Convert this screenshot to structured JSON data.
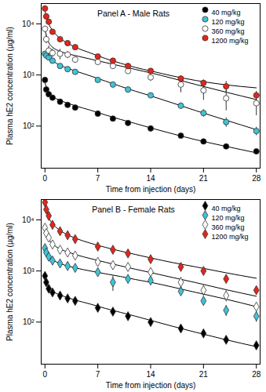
{
  "chart_data": [
    {
      "type": "scatter",
      "title": "Panel A - Male Rats",
      "x_label": "Time from injection (days)",
      "y_label": "Plasma hE2 concentration (µg/ml)",
      "log": "y",
      "legend": "top-right",
      "xlim": [
        -0.5,
        28.5
      ],
      "xticks": [
        0,
        7,
        14,
        21,
        28
      ],
      "ylim": [
        15,
        25000
      ],
      "yticks": [
        {
          "value": 100,
          "label": "10²"
        },
        {
          "value": 1000,
          "label": "10³"
        },
        {
          "value": 10000,
          "label": "10⁴"
        }
      ],
      "x": [
        0,
        0.17,
        0.5,
        1,
        2,
        3,
        4,
        7,
        9,
        11,
        14,
        18,
        21,
        24,
        28
      ],
      "fit_x": [
        0,
        0.5,
        1,
        2,
        3,
        4,
        6,
        8,
        10,
        12,
        14,
        17,
        20,
        24,
        28
      ],
      "series": [
        {
          "name": "40 mg/kg",
          "color": "#000000",
          "marker": "circle",
          "values": [
            800,
            520,
            420,
            360,
            300,
            260,
            230,
            175,
            140,
            115,
            90,
            65,
            50,
            40,
            32
          ],
          "errors": [
            60,
            30,
            25,
            20,
            15,
            12,
            10,
            10,
            8,
            7,
            6,
            5,
            5,
            4,
            3
          ],
          "fit": [
            700,
            460,
            380,
            320,
            280,
            250,
            205,
            165,
            135,
            112,
            92,
            70,
            54,
            40,
            30
          ]
        },
        {
          "name": "120 mg/kg",
          "color": "#3fc3d6",
          "marker": "circle",
          "values": [
            2600,
            2400,
            2200,
            1900,
            1500,
            1300,
            1150,
            800,
            650,
            520,
            400,
            250,
            180,
            120,
            80
          ],
          "errors": [
            300,
            250,
            200,
            150,
            120,
            100,
            80,
            60,
            50,
            40,
            40,
            35,
            30,
            25,
            15
          ],
          "fit": [
            2700,
            2200,
            1900,
            1550,
            1350,
            1200,
            960,
            760,
            600,
            480,
            390,
            280,
            200,
            130,
            85
          ]
        },
        {
          "name": "360 mg/kg",
          "color": "#ffffff",
          "marker": "circle",
          "values": [
            8000,
            5000,
            3000,
            2700,
            2600,
            2500,
            2000,
            1800,
            1500,
            1200,
            900,
            650,
            500,
            350,
            280
          ],
          "errors": [
            800,
            900,
            700,
            500,
            600,
            400,
            300,
            250,
            200,
            150,
            150,
            200,
            180,
            150,
            120
          ],
          "fit": [
            7500,
            4300,
            3500,
            2900,
            2600,
            2400,
            2050,
            1750,
            1500,
            1280,
            1100,
            850,
            650,
            460,
            330
          ]
        },
        {
          "name": "1200 mg/kg",
          "color": "#e4251b",
          "marker": "circle",
          "values": [
            20000,
            14000,
            11000,
            7000,
            5000,
            4200,
            3500,
            2300,
            1900,
            1500,
            1200,
            850,
            700,
            600,
            400
          ],
          "errors": [
            2500,
            1500,
            1000,
            700,
            500,
            400,
            300,
            200,
            150,
            120,
            100,
            80,
            100,
            150,
            80
          ],
          "fit": [
            18000,
            10000,
            7500,
            5200,
            4200,
            3500,
            2700,
            2100,
            1700,
            1400,
            1200,
            950,
            780,
            640,
            560
          ]
        }
      ]
    },
    {
      "type": "scatter",
      "title": "Panel B - Female Rats",
      "x_label": "Time from injection (days)",
      "y_label": "Plasma hE2 concentration (µg/ml)",
      "log": "y",
      "legend": "top-right",
      "xlim": [
        -0.5,
        28.5
      ],
      "xticks": [
        0,
        7,
        14,
        21,
        28
      ],
      "ylim": [
        15,
        25000
      ],
      "yticks": [
        {
          "value": 100,
          "label": "10²"
        },
        {
          "value": 1000,
          "label": "10³"
        },
        {
          "value": 10000,
          "label": "10⁴"
        }
      ],
      "x": [
        0,
        0.17,
        0.5,
        1,
        2,
        3,
        4,
        7,
        9,
        11,
        14,
        18,
        21,
        24,
        28
      ],
      "fit_x": [
        0,
        0.5,
        1,
        2,
        3,
        4,
        6,
        8,
        10,
        12,
        14,
        17,
        20,
        24,
        28
      ],
      "series": [
        {
          "name": "40 mg/kg",
          "color": "#000000",
          "marker": "diamond",
          "values": [
            800,
            600,
            450,
            380,
            330,
            290,
            260,
            190,
            160,
            130,
            100,
            75,
            60,
            45,
            35
          ],
          "errors": [
            80,
            40,
            30,
            25,
            20,
            15,
            12,
            10,
            8,
            7,
            6,
            5,
            5,
            4,
            3
          ],
          "fit": [
            750,
            470,
            400,
            340,
            300,
            270,
            225,
            185,
            155,
            130,
            108,
            82,
            63,
            45,
            33
          ]
        },
        {
          "name": "120 mg/kg",
          "color": "#3fc3d6",
          "marker": "diamond",
          "values": [
            2800,
            2300,
            1900,
            1600,
            1400,
            1250,
            1150,
            950,
            600,
            700,
            650,
            400,
            260,
            170,
            130
          ],
          "errors": [
            300,
            250,
            200,
            150,
            120,
            100,
            80,
            80,
            200,
            80,
            70,
            60,
            50,
            40,
            30
          ],
          "fit": [
            2700,
            1900,
            1650,
            1400,
            1250,
            1150,
            1000,
            880,
            780,
            680,
            600,
            480,
            380,
            280,
            200
          ]
        },
        {
          "name": "360 mg/kg",
          "color": "#ffffff",
          "marker": "diamond",
          "values": [
            7000,
            5500,
            4500,
            3300,
            2600,
            2300,
            2000,
            1500,
            1300,
            1200,
            950,
            600,
            420,
            330,
            200
          ],
          "errors": [
            700,
            500,
            400,
            300,
            250,
            200,
            150,
            120,
            100,
            100,
            80,
            150,
            100,
            80,
            30
          ],
          "fit": [
            6500,
            4200,
            3400,
            2700,
            2350,
            2100,
            1750,
            1480,
            1260,
            1080,
            930,
            740,
            590,
            430,
            320
          ]
        },
        {
          "name": "1200 mg/kg",
          "color": "#e4251b",
          "marker": "diamond",
          "values": [
            22000,
            16000,
            12000,
            8000,
            6000,
            5000,
            4200,
            3000,
            2600,
            2200,
            1700,
            1200,
            1000,
            700,
            420
          ],
          "errors": [
            2500,
            1500,
            1000,
            700,
            500,
            400,
            300,
            250,
            200,
            150,
            150,
            120,
            100,
            80,
            50
          ],
          "fit": [
            20000,
            11000,
            8500,
            6200,
            5100,
            4400,
            3500,
            2900,
            2450,
            2100,
            1800,
            1450,
            1200,
            920,
            720
          ]
        }
      ]
    }
  ]
}
